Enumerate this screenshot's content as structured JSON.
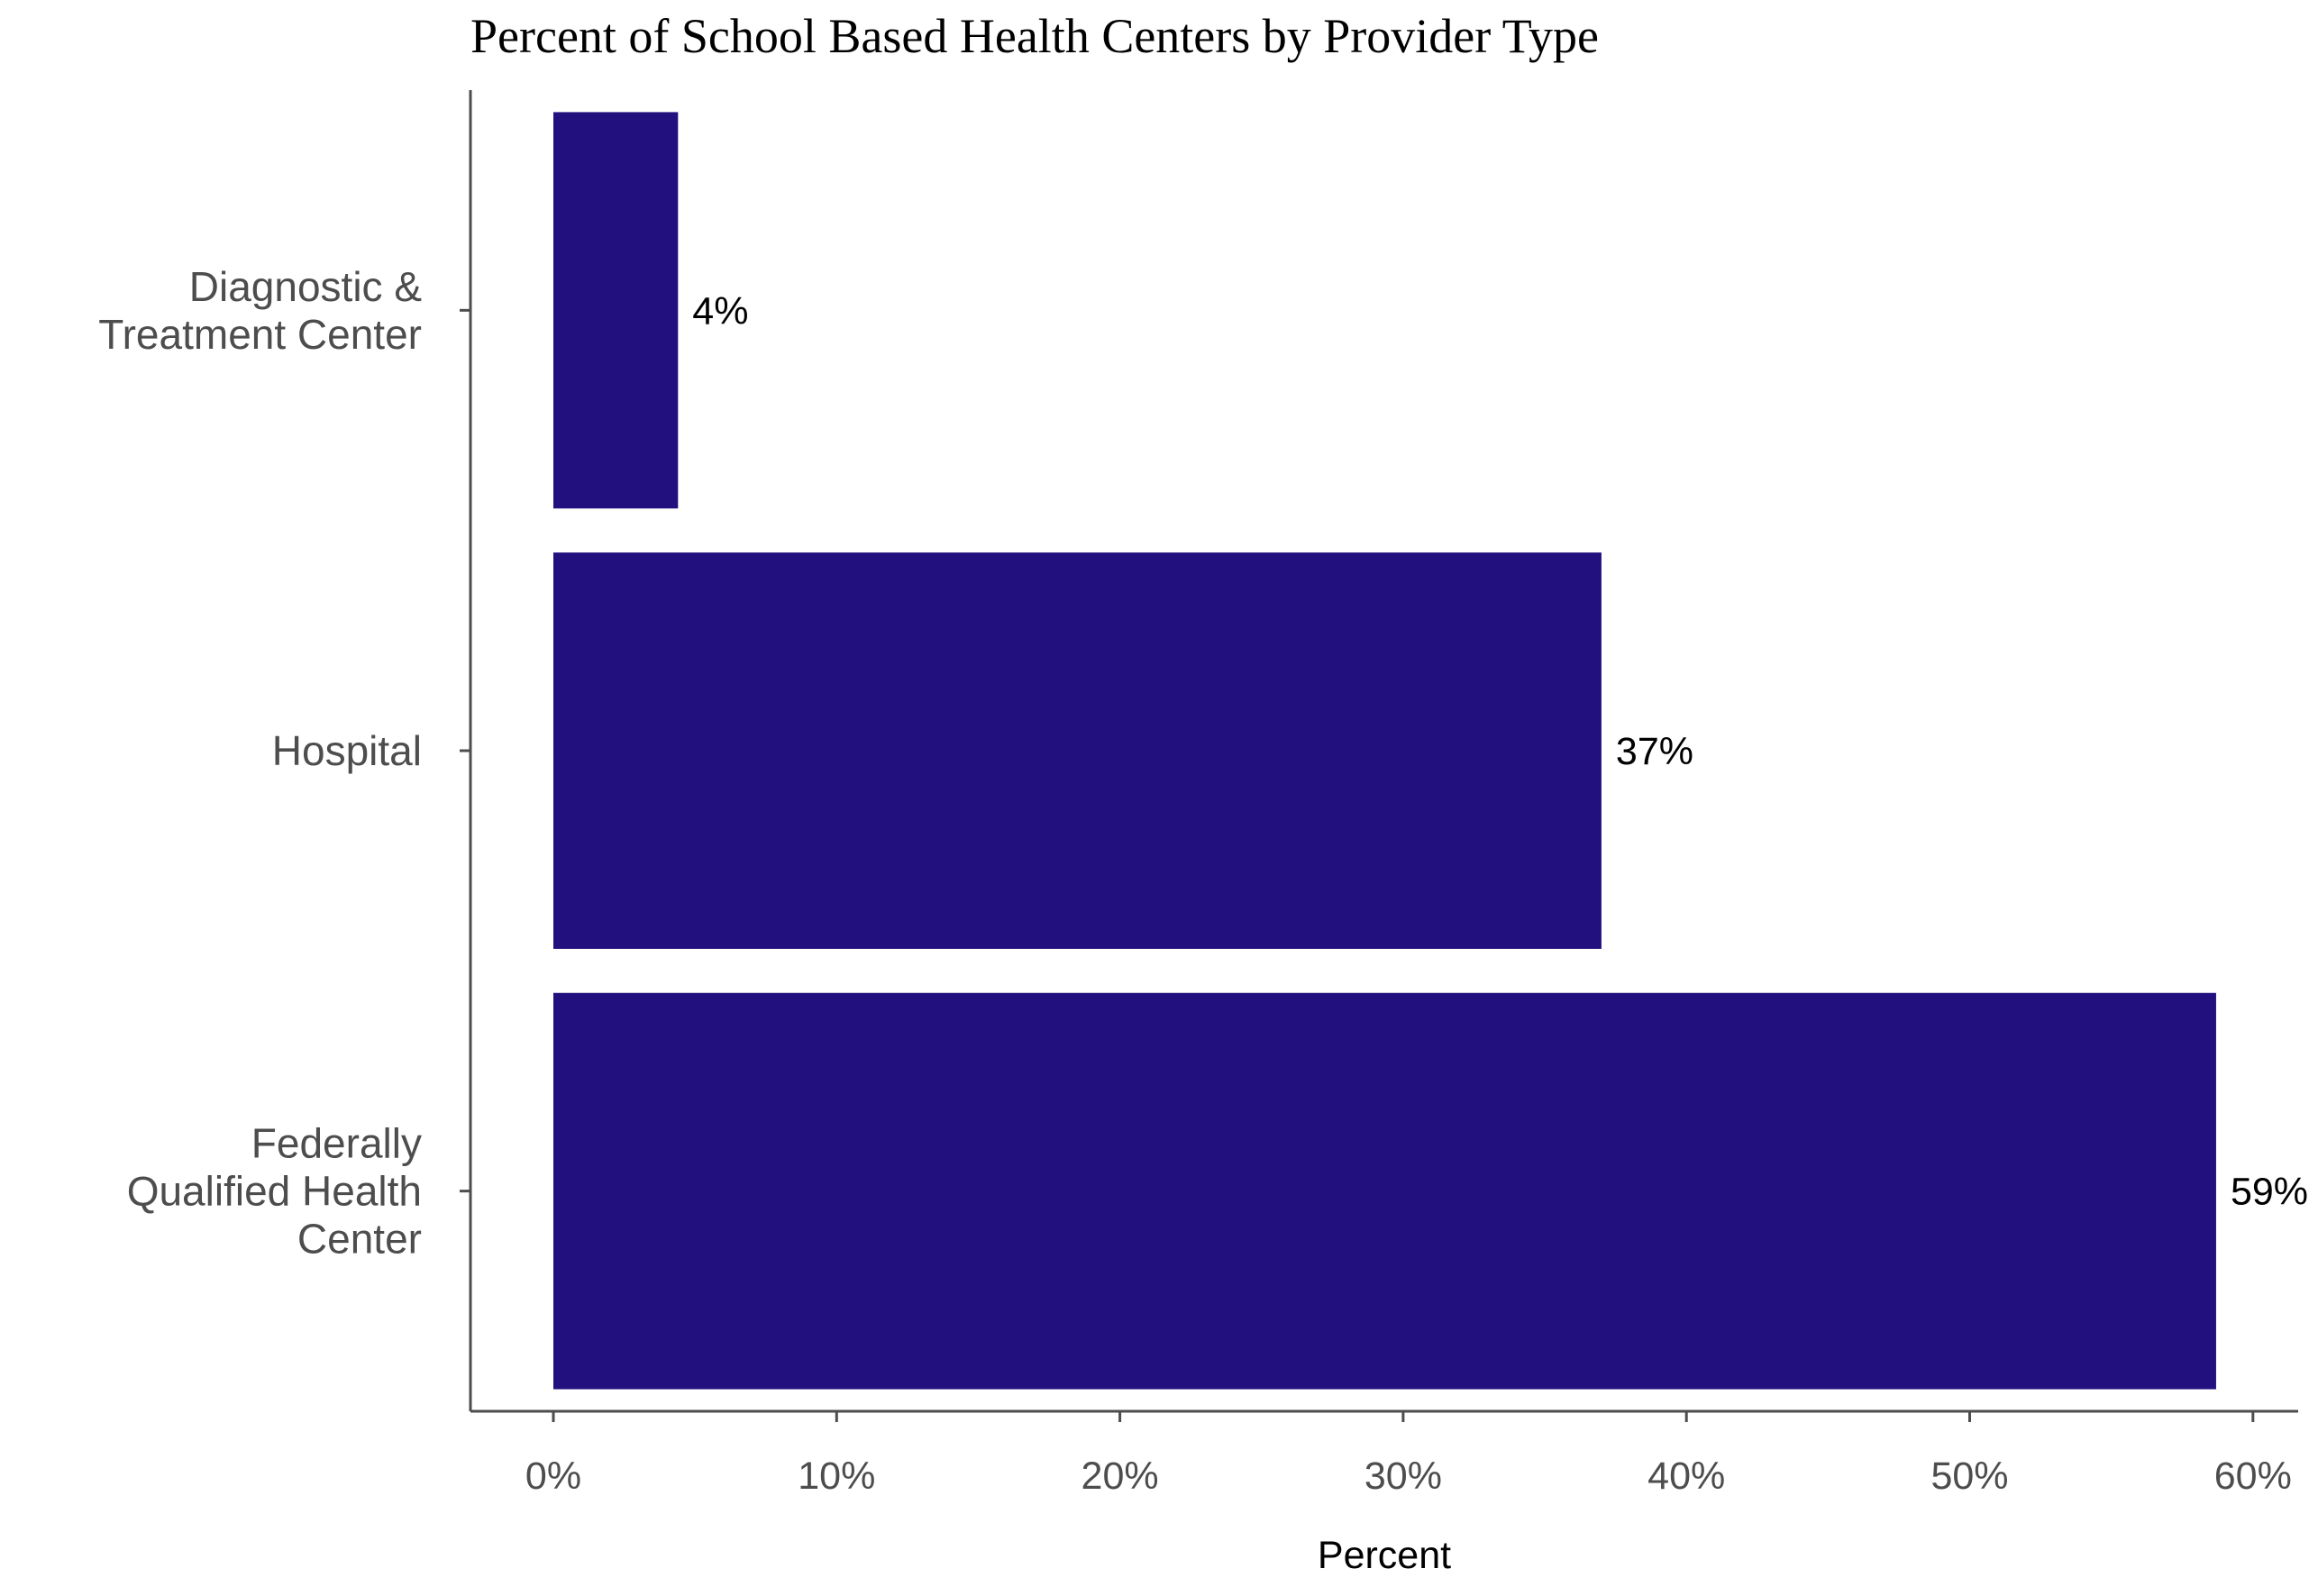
{
  "chart_data": {
    "type": "bar",
    "orientation": "horizontal",
    "title": "Percent of School Based Health Centers by Provider Type",
    "xlabel": "Percent",
    "ylabel": "",
    "categories": [
      "Diagnostic &\nTreatment Center",
      "Hospital",
      "Federally\nQualified Health\nCenter"
    ],
    "values": [
      4.4,
      37,
      58.7
    ],
    "data_labels": [
      "4%",
      "37%",
      "59%"
    ],
    "xlim": [
      -3,
      62
    ],
    "x_ticks": [
      0,
      10,
      20,
      30,
      40,
      50,
      60
    ],
    "x_tick_labels": [
      "0%",
      "10%",
      "20%",
      "30%",
      "40%",
      "50%",
      "60%"
    ],
    "bar_color": "#21107e",
    "grid": false,
    "legend": "none"
  }
}
